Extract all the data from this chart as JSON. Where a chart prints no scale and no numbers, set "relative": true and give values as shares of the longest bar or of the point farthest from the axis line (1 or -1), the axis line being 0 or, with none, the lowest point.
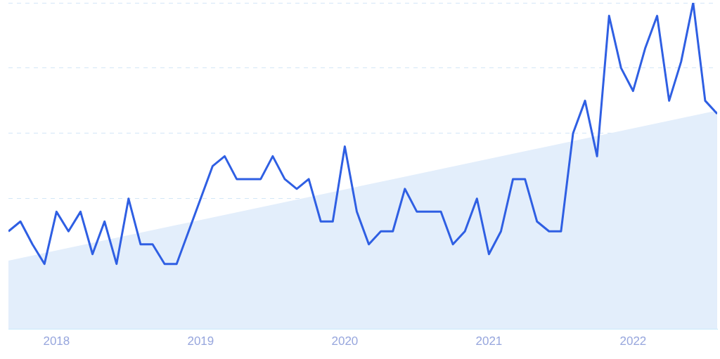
{
  "chart_data": {
    "type": "line",
    "relative": true,
    "grid": "y",
    "marker": "none",
    "line_style": "solid",
    "x": [
      "2017-09",
      "2017-10",
      "2017-11",
      "2017-12",
      "2018-01",
      "2018-02",
      "2018-03",
      "2018-04",
      "2018-05",
      "2018-06",
      "2018-07",
      "2018-08",
      "2018-09",
      "2018-10",
      "2018-11",
      "2018-12",
      "2019-01",
      "2019-02",
      "2019-03",
      "2019-04",
      "2019-05",
      "2019-06",
      "2019-07",
      "2019-08",
      "2019-09",
      "2019-10",
      "2019-11",
      "2019-12",
      "2020-01",
      "2020-02",
      "2020-03",
      "2020-04",
      "2020-05",
      "2020-06",
      "2020-07",
      "2020-08",
      "2020-09",
      "2020-10",
      "2020-11",
      "2020-12",
      "2021-01",
      "2021-02",
      "2021-03",
      "2021-04",
      "2021-05",
      "2021-06",
      "2021-07",
      "2021-08",
      "2021-09",
      "2021-10",
      "2021-11",
      "2021-12",
      "2022-01",
      "2022-02",
      "2022-03",
      "2022-04",
      "2022-05",
      "2022-06",
      "2022-07",
      "2022-08"
    ],
    "xlim": [
      "2017-09",
      "2022-08"
    ],
    "xticks": [
      {
        "value": "2018-01",
        "label": "2018"
      },
      {
        "value": "2019-01",
        "label": "2019"
      },
      {
        "value": "2020-01",
        "label": "2020"
      },
      {
        "value": "2021-01",
        "label": "2021"
      },
      {
        "value": "2022-01",
        "label": "2022"
      }
    ],
    "series": [
      {
        "type": "area",
        "color": "#e3eefb",
        "x": [
          "2017-09",
          "2022-08"
        ],
        "values": [
          0.21,
          0.67
        ]
      },
      {
        "type": "line",
        "color": "#2f5fe3",
        "values": [
          0.3,
          0.33,
          0.26,
          0.2,
          0.36,
          0.3,
          0.36,
          0.23,
          0.33,
          0.2,
          0.4,
          0.26,
          0.26,
          0.2,
          0.2,
          0.3,
          0.4,
          0.5,
          0.53,
          0.46,
          0.46,
          0.46,
          0.53,
          0.46,
          0.43,
          0.46,
          0.33,
          0.33,
          0.56,
          0.36,
          0.26,
          0.3,
          0.3,
          0.43,
          0.36,
          0.36,
          0.36,
          0.26,
          0.3,
          0.4,
          0.23,
          0.3,
          0.46,
          0.46,
          0.33,
          0.3,
          0.3,
          0.6,
          0.7,
          0.53,
          0.96,
          0.8,
          0.73,
          0.86,
          0.96,
          0.7,
          0.82,
          1,
          0.7,
          0.66
        ]
      }
    ]
  }
}
